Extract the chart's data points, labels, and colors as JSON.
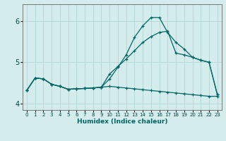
{
  "xlabel": "Humidex (Indice chaleur)",
  "bg_color": "#d4ecec",
  "grid_color": "#b8d8d8",
  "line_color": "#006666",
  "xlim": [
    -0.5,
    23.5
  ],
  "ylim": [
    3.85,
    6.4
  ],
  "yticks": [
    4,
    5,
    6
  ],
  "xticks": [
    0,
    1,
    2,
    3,
    4,
    5,
    6,
    7,
    8,
    9,
    10,
    11,
    12,
    13,
    14,
    15,
    16,
    17,
    18,
    19,
    20,
    21,
    22,
    23
  ],
  "xtick_labels": [
    "0",
    "1",
    "2",
    "3",
    "4",
    "5",
    "6",
    "7",
    "8",
    "9",
    "10",
    "11",
    "12",
    "13",
    "14",
    "15",
    "16",
    "17",
    "18",
    "19",
    "20",
    "21",
    "22",
    "23"
  ],
  "line_high_x": [
    0,
    1,
    2,
    3,
    4,
    5,
    6,
    7,
    8,
    9,
    10,
    11,
    12,
    13,
    14,
    15,
    16,
    17,
    18,
    19,
    20,
    21,
    22,
    23
  ],
  "line_high_y": [
    4.32,
    4.62,
    4.6,
    4.47,
    4.42,
    4.35,
    4.36,
    4.37,
    4.38,
    4.4,
    4.6,
    4.88,
    5.18,
    5.6,
    5.88,
    6.08,
    6.08,
    5.72,
    5.48,
    5.32,
    5.12,
    5.05,
    5.0,
    4.22
  ],
  "line_mid_x": [
    0,
    1,
    2,
    3,
    4,
    5,
    6,
    7,
    8,
    9,
    10,
    11,
    12,
    13,
    14,
    15,
    16,
    17,
    18,
    19,
    20,
    21,
    22,
    23
  ],
  "line_mid_y": [
    4.32,
    4.62,
    4.6,
    4.47,
    4.42,
    4.35,
    4.36,
    4.37,
    4.38,
    4.4,
    4.72,
    4.9,
    5.08,
    5.28,
    5.48,
    5.62,
    5.72,
    5.75,
    5.22,
    5.18,
    5.12,
    5.05,
    5.0,
    4.22
  ],
  "line_low_x": [
    0,
    1,
    2,
    3,
    4,
    5,
    6,
    7,
    8,
    9,
    10,
    11,
    12,
    13,
    14,
    15,
    16,
    17,
    18,
    19,
    20,
    21,
    22,
    23
  ],
  "line_low_y": [
    4.32,
    4.62,
    4.6,
    4.47,
    4.42,
    4.35,
    4.36,
    4.37,
    4.38,
    4.4,
    4.42,
    4.4,
    4.38,
    4.36,
    4.34,
    4.32,
    4.3,
    4.28,
    4.26,
    4.24,
    4.22,
    4.2,
    4.18,
    4.18
  ]
}
